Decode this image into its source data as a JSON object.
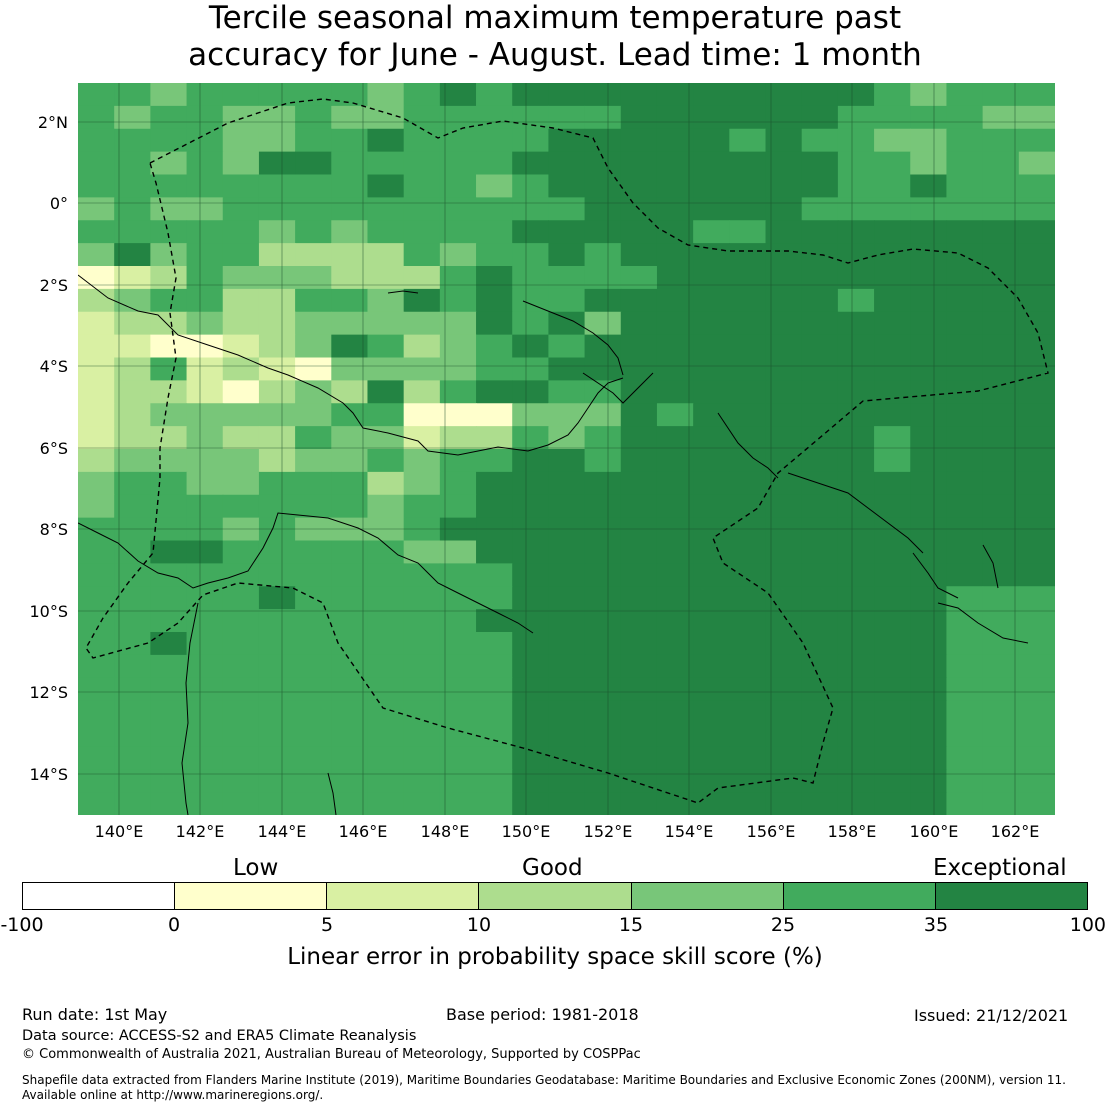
{
  "title_line1": "Tercile seasonal maximum temperature past",
  "title_line2": "accuracy for June - August. Lead time: 1 month",
  "map": {
    "lon_labels": [
      "140°E",
      "142°E",
      "144°E",
      "146°E",
      "148°E",
      "150°E",
      "152°E",
      "154°E",
      "156°E",
      "158°E",
      "160°E",
      "162°E"
    ],
    "lat_labels": [
      "2°N",
      "0°",
      "2°S",
      "4°S",
      "6°S",
      "8°S",
      "10°S",
      "12°S",
      "14°S"
    ],
    "grid_rows": [
      "443444443454555555555543444",
      "434433433444444555555444433",
      "444433445444455555454433444",
      "443435544444555555555443443",
      "444444445443455555555445444",
      "343344444444445555554444444",
      "444443434444555554455555555",
      "353442222434454555555555555",
      "012433322245444455555555555",
      "234422443545445555555455555",
      "122322333335453555555555555",
      "110012354234545555555555555",
      "124121033334455555555555555",
      "122102325245544555555555555",
      "123333344000333545555555555",
      "122322433122434555555545555",
      "233332334344554555555545555",
      "344334442345555555555555555",
      "344444443445555555555555555",
      "444434333455555555555555555",
      "445544444335555555555555555",
      "444444444444555555555555555",
      "444445444444555555555555444",
      "444444444445555555555555444",
      "445444444444555555555555444",
      "444444444444555555555555444",
      "444444444444555555555555444",
      "444444444444555555555555444",
      "444444444444555555555555444",
      "444444444444555555555555444",
      "444444444444555555555555444",
      "444444444444555555555555444"
    ]
  },
  "colorbar": {
    "categories": [
      "Low",
      "Good",
      "Exceptional"
    ],
    "ticks": [
      "-100",
      "0",
      "5",
      "10",
      "15",
      "25",
      "35",
      "100"
    ],
    "colors": [
      "#ffffff",
      "#ffffcc",
      "#d9f0a3",
      "#addd8e",
      "#78c679",
      "#41ab5d",
      "#238443"
    ],
    "label": "Linear error in probability space skill score (%)"
  },
  "footer": {
    "run_date": "Run date: 1st May",
    "base_period": "Base period: 1981-2018",
    "issued": "Issued: 21/12/2021",
    "data_source": "Data source: ACCESS-S2 and ERA5 Climate Reanalysis",
    "copyright": "© Commonwealth of Australia 2021, Australian Bureau of Meteorology, Supported by COSPPac",
    "shapefile_line1": "Shapefile data extracted from Flanders Marine Institute (2019), Maritime Boundaries Geodatabase: Maritime Boundaries and Exclusive Economic Zones (200NM), version 11.",
    "shapefile_line2": "Available online at http://www.marineregions.org/."
  }
}
